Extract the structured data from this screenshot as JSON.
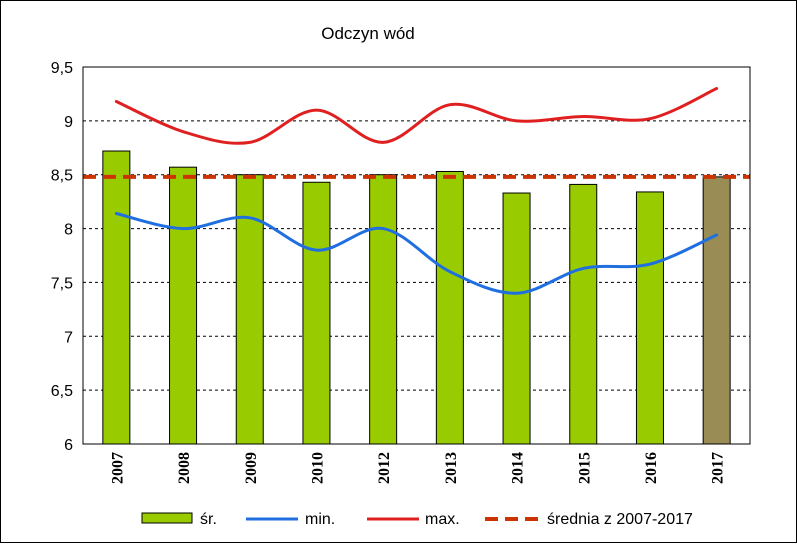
{
  "chart_data": {
    "type": "bar",
    "title": "Odczyn wód",
    "xlabel": "",
    "ylabel": "",
    "ylim": [
      6,
      9.5
    ],
    "yticks": [
      6,
      6.5,
      7,
      7.5,
      8,
      8.5,
      9,
      9.5
    ],
    "ytick_labels": [
      "6",
      "6,5",
      "7",
      "7,5",
      "8",
      "8,5",
      "9",
      "9,5"
    ],
    "grid": "horizontal dashed",
    "legend_position": "bottom",
    "categories": [
      "2007",
      "2008",
      "2009",
      "2010",
      "2012",
      "2013",
      "2014",
      "2015",
      "2016",
      "2017"
    ],
    "series": [
      {
        "name": "śr.",
        "kind": "bar",
        "color": "#99CC00",
        "highlight_color": "#9A8C55",
        "highlight_category": "2017",
        "values": [
          8.72,
          8.57,
          8.5,
          8.43,
          8.5,
          8.53,
          8.33,
          8.41,
          8.34,
          8.48
        ]
      },
      {
        "name": "min.",
        "kind": "line",
        "color": "#1F6FE0",
        "values": [
          8.14,
          8.0,
          8.1,
          7.8,
          8.0,
          7.6,
          7.4,
          7.63,
          7.67,
          7.94
        ]
      },
      {
        "name": "max.",
        "kind": "line",
        "color": "#E02020",
        "values": [
          9.18,
          8.9,
          8.8,
          9.1,
          8.8,
          9.15,
          9.0,
          9.04,
          9.02,
          9.3
        ]
      },
      {
        "name": "średnia z 2007-2017",
        "kind": "dashed-line",
        "color": "#CC3300",
        "value": 8.48
      }
    ]
  }
}
